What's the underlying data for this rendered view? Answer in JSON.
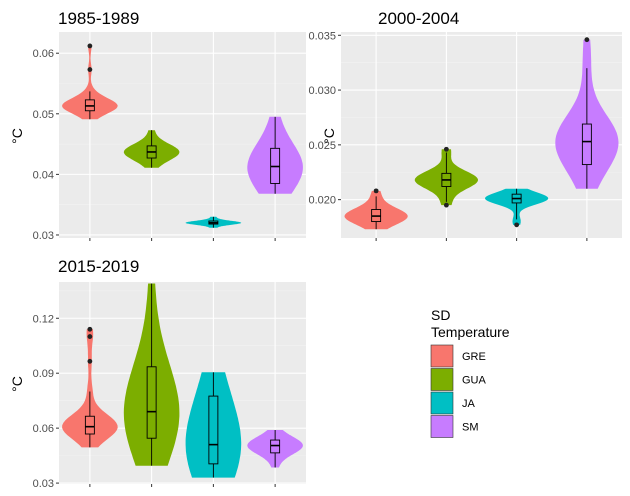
{
  "chart_data": [
    {
      "type": "violin",
      "title": "1985-1989",
      "ylabel": "°C",
      "ylim": [
        0.0295,
        0.0635
      ],
      "yticks": [
        0.03,
        0.04,
        0.05,
        0.06
      ],
      "ytick_labels": [
        "0.03",
        "0.04",
        "0.05",
        "0.06"
      ],
      "categories": [
        "GRE",
        "GUA",
        "JA",
        "SM"
      ],
      "series": [
        {
          "name": "GRE",
          "min": 0.0491,
          "q1": 0.0505,
          "median": 0.0513,
          "q3": 0.0523,
          "max": 0.0537,
          "outliers": [
            0.0573,
            0.0612
          ]
        },
        {
          "name": "GUA",
          "min": 0.0411,
          "q1": 0.0427,
          "median": 0.0437,
          "q3": 0.0447,
          "max": 0.0473,
          "outliers": []
        },
        {
          "name": "JA",
          "min": 0.0312,
          "q1": 0.0318,
          "median": 0.032,
          "q3": 0.0323,
          "max": 0.033,
          "outliers": []
        },
        {
          "name": "SM",
          "min": 0.0368,
          "q1": 0.0385,
          "median": 0.0413,
          "q3": 0.0443,
          "max": 0.0495,
          "outliers": []
        }
      ]
    },
    {
      "type": "violin",
      "title": "2000-2004",
      "ylabel": "°C",
      "ylim": [
        0.0165,
        0.0353
      ],
      "yticks": [
        0.02,
        0.025,
        0.03,
        0.035
      ],
      "ytick_labels": [
        "0.020",
        "0.025",
        "0.030",
        "0.035"
      ],
      "categories": [
        "GRE",
        "GUA",
        "JA",
        "SM"
      ],
      "series": [
        {
          "name": "GRE",
          "min": 0.0173,
          "q1": 0.018,
          "median": 0.0185,
          "q3": 0.0191,
          "max": 0.0203,
          "outliers": [
            0.0208
          ]
        },
        {
          "name": "GUA",
          "min": 0.0198,
          "q1": 0.0212,
          "median": 0.0218,
          "q3": 0.0224,
          "max": 0.0243,
          "outliers": [
            0.0195,
            0.0246
          ]
        },
        {
          "name": "JA",
          "min": 0.0182,
          "q1": 0.0197,
          "median": 0.0201,
          "q3": 0.0205,
          "max": 0.021,
          "outliers": [
            0.0177
          ]
        },
        {
          "name": "SM",
          "min": 0.021,
          "q1": 0.0232,
          "median": 0.0253,
          "q3": 0.0269,
          "max": 0.032,
          "outliers": [
            0.0346
          ]
        }
      ]
    },
    {
      "type": "violin",
      "title": "2015-2019",
      "ylabel": "°C",
      "ylim": [
        0.0295,
        0.1398
      ],
      "yticks": [
        0.03,
        0.06,
        0.09,
        0.12
      ],
      "ytick_labels": [
        "0.03",
        "0.06",
        "0.09",
        "0.12"
      ],
      "categories": [
        "GRE",
        "GUA",
        "JA",
        "SM"
      ],
      "series": [
        {
          "name": "GRE",
          "min": 0.0495,
          "q1": 0.0568,
          "median": 0.0608,
          "q3": 0.0665,
          "max": 0.08,
          "outliers": [
            0.0965,
            0.11,
            0.114
          ]
        },
        {
          "name": "GUA",
          "min": 0.0395,
          "q1": 0.0545,
          "median": 0.069,
          "q3": 0.0935,
          "max": 0.139,
          "outliers": []
        },
        {
          "name": "JA",
          "min": 0.033,
          "q1": 0.0405,
          "median": 0.051,
          "q3": 0.0775,
          "max": 0.0905,
          "outliers": []
        },
        {
          "name": "SM",
          "min": 0.0385,
          "q1": 0.0465,
          "median": 0.0505,
          "q3": 0.0535,
          "max": 0.059,
          "outliers": []
        }
      ]
    }
  ],
  "legend": {
    "title_line1": "SD",
    "title_line2": "Temperature",
    "items": [
      {
        "label": "GRE",
        "color": "#F8766D"
      },
      {
        "label": "GUA",
        "color": "#7CAE00"
      },
      {
        "label": "JA",
        "color": "#00BFC4"
      },
      {
        "label": "SM",
        "color": "#C77CFF"
      }
    ]
  },
  "style": {
    "panel_bg": "#EBEBEB",
    "grid_major": "#FFFFFF",
    "grid_minor": "#F2F2F2"
  }
}
